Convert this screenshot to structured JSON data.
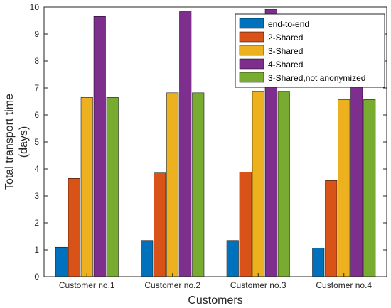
{
  "chart_data": {
    "type": "bar",
    "title": "",
    "xlabel": "Customers",
    "ylabel_lines": [
      "Total transport time",
      "(days)"
    ],
    "categories": [
      "Customer no.1",
      "Customer no.2",
      "Customer no.3",
      "Customer no.4"
    ],
    "ylim": [
      0,
      10
    ],
    "yticks": [
      0,
      1,
      2,
      3,
      4,
      5,
      6,
      7,
      8,
      9,
      10
    ],
    "grid": false,
    "legend_position": "top-right",
    "series": [
      {
        "name": "end-to-end",
        "color": "#0072BD",
        "values": [
          1.1,
          1.35,
          1.35,
          1.07
        ]
      },
      {
        "name": "2-Shared",
        "color": "#D95319",
        "values": [
          3.65,
          3.85,
          3.88,
          3.57
        ]
      },
      {
        "name": "3-Shared",
        "color": "#EDB120",
        "values": [
          6.65,
          6.82,
          6.88,
          6.57
        ]
      },
      {
        "name": "4-Shared",
        "color": "#7E2F8E",
        "values": [
          9.65,
          9.83,
          9.92,
          7.55
        ]
      },
      {
        "name": "3-Shared,not anonymized",
        "color": "#77AC30",
        "values": [
          6.65,
          6.82,
          6.88,
          6.57
        ]
      }
    ]
  }
}
